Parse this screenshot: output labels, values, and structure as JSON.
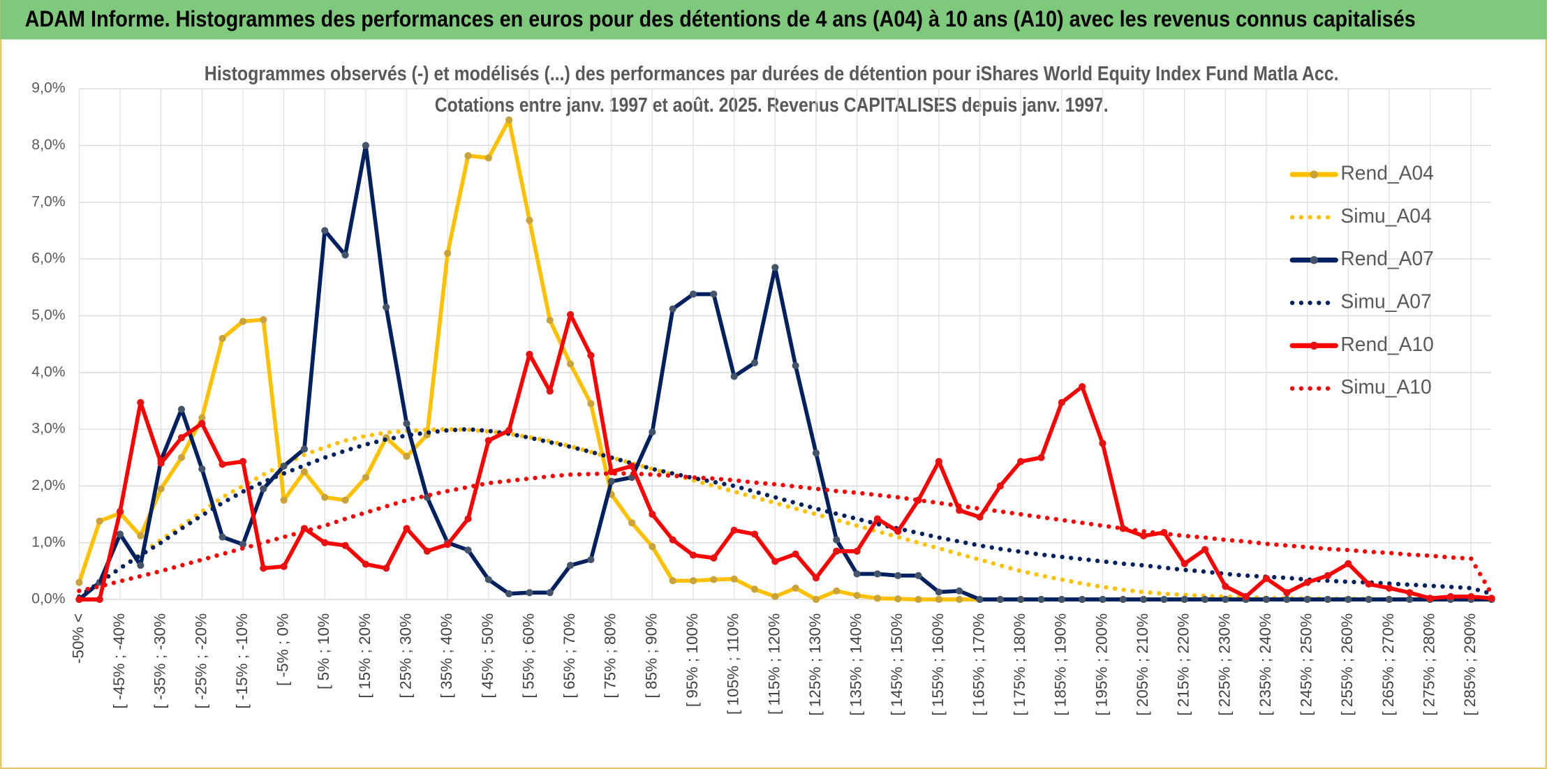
{
  "chart_data": {
    "type": "line",
    "title": "ADAM Informe. Histogrammes des performances en euros pour des détentions de 4 ans (A04) à 10 ans (A10) avec les revenus connus capitalisés",
    "subtitle": [
      "Histogrammes observés (-) et modélisés (...) des performances par durées de détention pour iShares World Equity Index Fund Matla Acc.",
      "Cotations entre janv. 1997 et août. 2025. Revenus CAPITALISES depuis janv. 1997."
    ],
    "categories": [
      "-50% <",
      null,
      "[ -45% ; -40%",
      null,
      "[ -35% ; -30%",
      null,
      "[ -25% ; -20%",
      null,
      "[ -15% ; -10%",
      null,
      "[ -5% ; 0%",
      null,
      "[ 5% ; 10%",
      null,
      "[ 15% ; 20%",
      null,
      "[ 25% ; 30%",
      null,
      "[ 35% ; 40%",
      null,
      "[ 45% ; 50%",
      null,
      "[ 55% ; 60%",
      null,
      "[ 65% ; 70%",
      null,
      "[ 75% ; 80%",
      null,
      "[ 85% ; 90%",
      null,
      "[ 95% ; 100%",
      null,
      "[ 105% ; 110%",
      null,
      "[ 115% ; 120%",
      null,
      "[ 125% ; 130%",
      null,
      "[ 135% ; 140%",
      null,
      "[ 145% ; 150%",
      null,
      "[ 155% ; 160%",
      null,
      "[ 165% ; 170%",
      null,
      "[ 175% ; 180%",
      null,
      "[ 185% ; 190%",
      null,
      "[ 195% ; 200%",
      null,
      "[ 205% ; 210%",
      null,
      "[ 215% ; 220%",
      null,
      "[ 225% ; 230%",
      null,
      "[ 235% ; 240%",
      null,
      "[ 245% ; 250%",
      null,
      "[ 255% ; 260%",
      null,
      "[ 265% ; 270%",
      null,
      "[ 275% ; 280%",
      null,
      "[ 285% ; 290%",
      null
    ],
    "series": [
      {
        "name": "Rend_A04",
        "color": "#ffc000",
        "marker": "#c9a33a",
        "dash": "solid",
        "values": [
          0.3,
          1.38,
          1.52,
          1.12,
          1.95,
          2.5,
          3.2,
          4.6,
          4.9,
          4.93,
          1.75,
          2.25,
          1.8,
          1.75,
          2.15,
          2.85,
          2.52,
          2.9,
          6.1,
          7.82,
          7.78,
          8.45,
          6.68,
          4.92,
          4.15,
          3.45,
          1.85,
          1.35,
          0.93,
          0.33,
          0.33,
          0.35,
          0.36,
          0.18,
          0.05,
          0.2,
          0,
          0.15,
          0.07,
          0.02,
          0.01,
          0,
          0,
          0,
          0,
          0,
          0,
          0,
          0,
          0,
          0,
          0,
          0,
          0,
          0,
          0,
          0,
          0,
          0,
          0,
          0,
          0,
          0,
          0,
          0,
          0,
          0,
          0,
          0,
          0
        ]
      },
      {
        "name": "Simu_A04",
        "color": "#ffc000",
        "dash": "dotted",
        "values": [
          0.05,
          0.3,
          0.55,
          0.8,
          1.05,
          1.3,
          1.55,
          1.8,
          2.0,
          2.2,
          2.38,
          2.55,
          2.68,
          2.8,
          2.88,
          2.94,
          2.97,
          2.99,
          3.0,
          2.99,
          2.96,
          2.92,
          2.86,
          2.79,
          2.7,
          2.6,
          2.5,
          2.4,
          2.3,
          2.2,
          2.1,
          2.0,
          1.9,
          1.8,
          1.7,
          1.6,
          1.5,
          1.4,
          1.3,
          1.2,
          1.1,
          1.0,
          0.9,
          0.8,
          0.7,
          0.6,
          0.5,
          0.42,
          0.35,
          0.28,
          0.22,
          0.17,
          0.13,
          0.1,
          0.08,
          0.06,
          0.05,
          0.04,
          0.03,
          0.02,
          0.02,
          0.01,
          0.01,
          0.01,
          0,
          0,
          0,
          0,
          0,
          0
        ]
      },
      {
        "name": "Rend_A07",
        "color": "#002060",
        "marker": "#44546a",
        "dash": "solid",
        "values": [
          0,
          0.3,
          1.15,
          0.6,
          2.45,
          3.35,
          2.3,
          1.1,
          0.97,
          1.95,
          2.35,
          2.65,
          6.5,
          6.07,
          8.0,
          5.15,
          3.1,
          1.8,
          1.0,
          0.87,
          0.35,
          0.1,
          0.12,
          0.12,
          0.6,
          0.7,
          2.08,
          2.15,
          2.95,
          5.12,
          5.38,
          5.38,
          3.93,
          4.17,
          5.85,
          4.12,
          2.58,
          1.05,
          0.45,
          0.45,
          0.42,
          0.42,
          0.13,
          0.15,
          0,
          0,
          0,
          0,
          0,
          0,
          0,
          0,
          0,
          0,
          0,
          0,
          0,
          0,
          0,
          0,
          0,
          0,
          0,
          0,
          0,
          0,
          0,
          0,
          0,
          0
        ]
      },
      {
        "name": "Simu_A07",
        "color": "#002060",
        "dash": "dotted",
        "values": [
          0.05,
          0.3,
          0.55,
          0.78,
          1.0,
          1.25,
          1.48,
          1.7,
          1.9,
          2.07,
          2.22,
          2.36,
          2.5,
          2.62,
          2.73,
          2.82,
          2.89,
          2.94,
          2.98,
          3.0,
          2.97,
          2.92,
          2.85,
          2.77,
          2.69,
          2.6,
          2.5,
          2.4,
          2.3,
          2.22,
          2.14,
          2.07,
          2.0,
          1.9,
          1.8,
          1.7,
          1.6,
          1.51,
          1.42,
          1.33,
          1.25,
          1.17,
          1.09,
          1.02,
          0.95,
          0.89,
          0.84,
          0.79,
          0.75,
          0.71,
          0.67,
          0.63,
          0.6,
          0.56,
          0.52,
          0.49,
          0.45,
          0.42,
          0.4,
          0.38,
          0.35,
          0.33,
          0.31,
          0.3,
          0.28,
          0.26,
          0.24,
          0.22,
          0.2,
          0.1
        ]
      },
      {
        "name": "Rend_A10",
        "color": "#ff0000",
        "marker": "#e81010",
        "dash": "solid",
        "values": [
          0,
          0,
          1.55,
          3.47,
          2.4,
          2.85,
          3.1,
          2.38,
          2.43,
          0.55,
          0.58,
          1.25,
          1.0,
          0.95,
          0.62,
          0.55,
          1.25,
          0.85,
          0.97,
          1.42,
          2.8,
          2.98,
          4.32,
          3.67,
          5.02,
          4.3,
          2.25,
          2.35,
          1.5,
          1.05,
          0.78,
          0.73,
          1.22,
          1.15,
          0.67,
          0.8,
          0.38,
          0.85,
          0.85,
          1.42,
          1.2,
          1.75,
          2.43,
          1.57,
          1.45,
          2.0,
          2.43,
          2.5,
          3.47,
          3.75,
          2.75,
          1.25,
          1.12,
          1.18,
          0.63,
          0.88,
          0.23,
          0.05,
          0.37,
          0.12,
          0.3,
          0.42,
          0.63,
          0.27,
          0.2,
          0.12,
          0.02,
          0.05,
          0.05,
          0.02
        ]
      },
      {
        "name": "Simu_A10",
        "color": "#ff0000",
        "dash": "dotted",
        "values": [
          0.15,
          0.23,
          0.32,
          0.41,
          0.5,
          0.6,
          0.7,
          0.8,
          0.9,
          1.0,
          1.1,
          1.2,
          1.3,
          1.42,
          1.53,
          1.64,
          1.75,
          1.83,
          1.91,
          1.98,
          2.05,
          2.09,
          2.13,
          2.17,
          2.2,
          2.21,
          2.22,
          2.22,
          2.2,
          2.18,
          2.15,
          2.13,
          2.1,
          2.06,
          2.03,
          1.99,
          1.95,
          1.91,
          1.88,
          1.84,
          1.8,
          1.75,
          1.7,
          1.65,
          1.6,
          1.55,
          1.5,
          1.45,
          1.4,
          1.35,
          1.3,
          1.25,
          1.2,
          1.16,
          1.12,
          1.09,
          1.05,
          1.02,
          0.98,
          0.95,
          0.92,
          0.89,
          0.87,
          0.84,
          0.82,
          0.79,
          0.77,
          0.74,
          0.72,
          0.1
        ]
      }
    ],
    "ylim": [
      0,
      9
    ],
    "yticks": [
      {
        "value": 0,
        "label": "0,0%"
      },
      {
        "value": 1,
        "label": "1,0%"
      },
      {
        "value": 2,
        "label": "2,0%"
      },
      {
        "value": 3,
        "label": "3,0%"
      },
      {
        "value": 4,
        "label": "4,0%"
      },
      {
        "value": 5,
        "label": "5,0%"
      },
      {
        "value": 6,
        "label": "6,0%"
      },
      {
        "value": 7,
        "label": "7,0%"
      },
      {
        "value": 8,
        "label": "8,0%"
      },
      {
        "value": 9,
        "label": "9,0%"
      }
    ],
    "grid": true,
    "legend": "upper right"
  }
}
